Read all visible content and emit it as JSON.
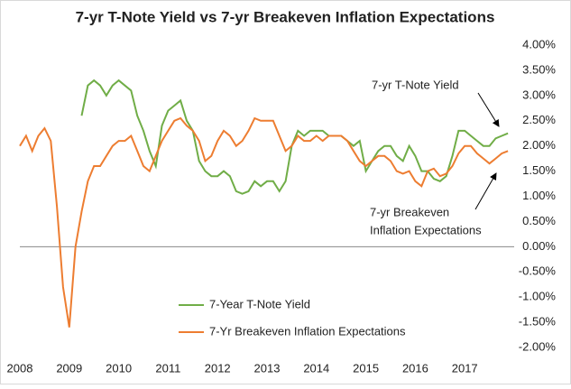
{
  "chart_data": {
    "type": "line",
    "title": "7-yr T-Note Yield vs 7-yr Breakeven Inflation Expectations",
    "x": [
      2008,
      2008.125,
      2008.25,
      2008.375,
      2008.5,
      2008.625,
      2008.75,
      2008.875,
      2009,
      2009.125,
      2009.25,
      2009.375,
      2009.5,
      2009.625,
      2009.75,
      2009.875,
      2010,
      2010.125,
      2010.25,
      2010.375,
      2010.5,
      2010.625,
      2010.75,
      2010.875,
      2011,
      2011.125,
      2011.25,
      2011.375,
      2011.5,
      2011.625,
      2011.75,
      2011.875,
      2012,
      2012.125,
      2012.25,
      2012.375,
      2012.5,
      2012.625,
      2012.75,
      2012.875,
      2013,
      2013.125,
      2013.25,
      2013.375,
      2013.5,
      2013.625,
      2013.75,
      2013.875,
      2014,
      2014.125,
      2014.25,
      2014.375,
      2014.5,
      2014.625,
      2014.75,
      2014.875,
      2015,
      2015.125,
      2015.25,
      2015.375,
      2015.5,
      2015.625,
      2015.75,
      2015.875,
      2016,
      2016.125,
      2016.25,
      2016.375,
      2016.5,
      2016.625,
      2016.75,
      2016.875,
      2017,
      2017.125,
      2017.25,
      2017.375,
      2017.5,
      2017.625,
      2017.75,
      2017.875
    ],
    "series": [
      {
        "name": "7-Year T-Note Yield",
        "color": "#70ad47",
        "values": [
          null,
          null,
          null,
          null,
          null,
          null,
          null,
          null,
          null,
          null,
          2.6,
          3.2,
          3.3,
          3.2,
          3.0,
          3.2,
          3.3,
          3.2,
          3.1,
          2.6,
          2.3,
          1.9,
          1.6,
          2.4,
          2.7,
          2.8,
          2.9,
          2.5,
          2.3,
          1.7,
          1.5,
          1.4,
          1.4,
          1.5,
          1.4,
          1.1,
          1.05,
          1.1,
          1.3,
          1.2,
          1.3,
          1.3,
          1.1,
          1.3,
          2.0,
          2.3,
          2.2,
          2.3,
          2.3,
          2.3,
          2.2,
          2.2,
          2.2,
          2.1,
          2.0,
          2.1,
          1.5,
          1.7,
          1.9,
          2.0,
          2.0,
          1.8,
          1.7,
          2.0,
          1.8,
          1.5,
          1.5,
          1.35,
          1.3,
          1.4,
          1.8,
          2.3,
          2.3,
          2.2,
          2.1,
          2.0,
          2.0,
          2.15,
          2.2,
          2.25
        ]
      },
      {
        "name": "7-Yr Breakeven Inflation Expectations",
        "color": "#ed7d31",
        "values": [
          2.0,
          2.2,
          1.9,
          2.2,
          2.35,
          2.1,
          0.8,
          -0.8,
          -1.6,
          0.0,
          0.7,
          1.3,
          1.6,
          1.6,
          1.8,
          2.0,
          2.1,
          2.1,
          2.2,
          1.9,
          1.6,
          1.5,
          1.8,
          2.1,
          2.3,
          2.5,
          2.55,
          2.4,
          2.3,
          2.1,
          1.7,
          1.8,
          2.1,
          2.3,
          2.2,
          2.0,
          2.1,
          2.3,
          2.55,
          2.5,
          2.5,
          2.5,
          2.2,
          1.9,
          2.0,
          2.2,
          2.1,
          2.1,
          2.2,
          2.1,
          2.2,
          2.2,
          2.2,
          2.1,
          1.9,
          1.7,
          1.6,
          1.7,
          1.8,
          1.8,
          1.7,
          1.5,
          1.45,
          1.5,
          1.3,
          1.2,
          1.5,
          1.55,
          1.4,
          1.45,
          1.6,
          1.85,
          2.0,
          2.0,
          1.85,
          1.75,
          1.65,
          1.75,
          1.85,
          1.9
        ]
      }
    ],
    "xlim": [
      2008,
      2018
    ],
    "xticks": [
      2008,
      2009,
      2010,
      2011,
      2012,
      2013,
      2014,
      2015,
      2016,
      2017
    ],
    "ylim": [
      -2,
      4
    ],
    "yticks": [
      {
        "value": 4,
        "label": "4.00%"
      },
      {
        "value": 3.5,
        "label": "3.50%"
      },
      {
        "value": 3,
        "label": "3.00%"
      },
      {
        "value": 2.5,
        "label": "2.50%"
      },
      {
        "value": 2,
        "label": "2.00%"
      },
      {
        "value": 1.5,
        "label": "1.50%"
      },
      {
        "value": 1,
        "label": "1.00%"
      },
      {
        "value": 0.5,
        "label": "0.50%"
      },
      {
        "value": 0,
        "label": "0.00%"
      },
      {
        "value": -0.5,
        "label": "-0.50%"
      },
      {
        "value": -1,
        "label": "-1.00%"
      },
      {
        "value": -1.5,
        "label": "-1.50%"
      },
      {
        "value": -2,
        "label": "-2.00%"
      }
    ],
    "annotations": [
      "7-yr T-Note Yield",
      "7-yr Breakeven",
      "Inflation Expectations"
    ],
    "legend": "lower center"
  }
}
